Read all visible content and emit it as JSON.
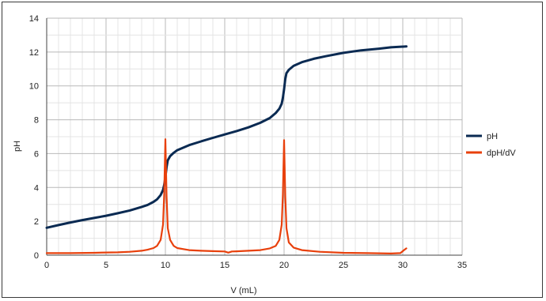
{
  "chart_data": {
    "type": "line",
    "title": "",
    "xlabel": "V (mL)",
    "ylabel": "pH",
    "xlim": [
      0,
      35
    ],
    "ylim": [
      0,
      14
    ],
    "xticks": [
      0,
      5,
      10,
      15,
      20,
      25,
      30,
      35
    ],
    "yticks": [
      0,
      2,
      4,
      6,
      8,
      10,
      12,
      14
    ],
    "grid": true,
    "legend": "right",
    "series": [
      {
        "name": "pH",
        "color": "#0a2a52",
        "points": [
          [
            0,
            1.62
          ],
          [
            1,
            1.78
          ],
          [
            2,
            1.93
          ],
          [
            3,
            2.07
          ],
          [
            4,
            2.2
          ],
          [
            5,
            2.33
          ],
          [
            6,
            2.48
          ],
          [
            7,
            2.64
          ],
          [
            8,
            2.85
          ],
          [
            8.5,
            2.97
          ],
          [
            9,
            3.15
          ],
          [
            9.3,
            3.3
          ],
          [
            9.6,
            3.55
          ],
          [
            9.8,
            3.85
          ],
          [
            9.9,
            4.15
          ],
          [
            10,
            4.6
          ],
          [
            10.1,
            5.2
          ],
          [
            10.2,
            5.6
          ],
          [
            10.4,
            5.85
          ],
          [
            10.7,
            6.05
          ],
          [
            11,
            6.2
          ],
          [
            12,
            6.5
          ],
          [
            13,
            6.72
          ],
          [
            14,
            6.93
          ],
          [
            15,
            7.13
          ],
          [
            16,
            7.33
          ],
          [
            17,
            7.55
          ],
          [
            18,
            7.82
          ],
          [
            18.8,
            8.1
          ],
          [
            19.3,
            8.4
          ],
          [
            19.6,
            8.65
          ],
          [
            19.8,
            8.95
          ],
          [
            19.9,
            9.3
          ],
          [
            20,
            9.8
          ],
          [
            20.1,
            10.4
          ],
          [
            20.2,
            10.75
          ],
          [
            20.4,
            10.95
          ],
          [
            20.8,
            11.18
          ],
          [
            21.5,
            11.4
          ],
          [
            22.5,
            11.6
          ],
          [
            23.5,
            11.75
          ],
          [
            25,
            11.95
          ],
          [
            26.5,
            12.1
          ],
          [
            28,
            12.2
          ],
          [
            29,
            12.28
          ],
          [
            30.3,
            12.33
          ]
        ]
      },
      {
        "name": "dpH/dV",
        "color": "#e8400c",
        "points": [
          [
            0,
            0.12
          ],
          [
            2,
            0.12
          ],
          [
            4,
            0.14
          ],
          [
            5,
            0.16
          ],
          [
            6,
            0.17
          ],
          [
            7,
            0.2
          ],
          [
            8,
            0.26
          ],
          [
            8.5,
            0.32
          ],
          [
            9,
            0.42
          ],
          [
            9.3,
            0.55
          ],
          [
            9.6,
            0.9
          ],
          [
            9.8,
            1.8
          ],
          [
            9.9,
            3.6
          ],
          [
            10,
            6.85
          ],
          [
            10.1,
            3.5
          ],
          [
            10.2,
            1.6
          ],
          [
            10.4,
            0.9
          ],
          [
            10.7,
            0.55
          ],
          [
            11,
            0.42
          ],
          [
            12,
            0.3
          ],
          [
            13,
            0.26
          ],
          [
            14,
            0.24
          ],
          [
            15,
            0.22
          ],
          [
            15.3,
            0.15
          ],
          [
            15.6,
            0.22
          ],
          [
            16,
            0.23
          ],
          [
            17,
            0.26
          ],
          [
            18,
            0.3
          ],
          [
            18.8,
            0.4
          ],
          [
            19.3,
            0.55
          ],
          [
            19.6,
            0.9
          ],
          [
            19.8,
            1.8
          ],
          [
            19.9,
            3.6
          ],
          [
            20,
            6.8
          ],
          [
            20.1,
            3.5
          ],
          [
            20.2,
            1.6
          ],
          [
            20.4,
            0.75
          ],
          [
            20.8,
            0.45
          ],
          [
            21.5,
            0.3
          ],
          [
            23,
            0.2
          ],
          [
            25,
            0.14
          ],
          [
            27,
            0.12
          ],
          [
            29,
            0.1
          ],
          [
            29.8,
            0.12
          ],
          [
            30.1,
            0.3
          ],
          [
            30.3,
            0.4
          ]
        ]
      }
    ]
  }
}
